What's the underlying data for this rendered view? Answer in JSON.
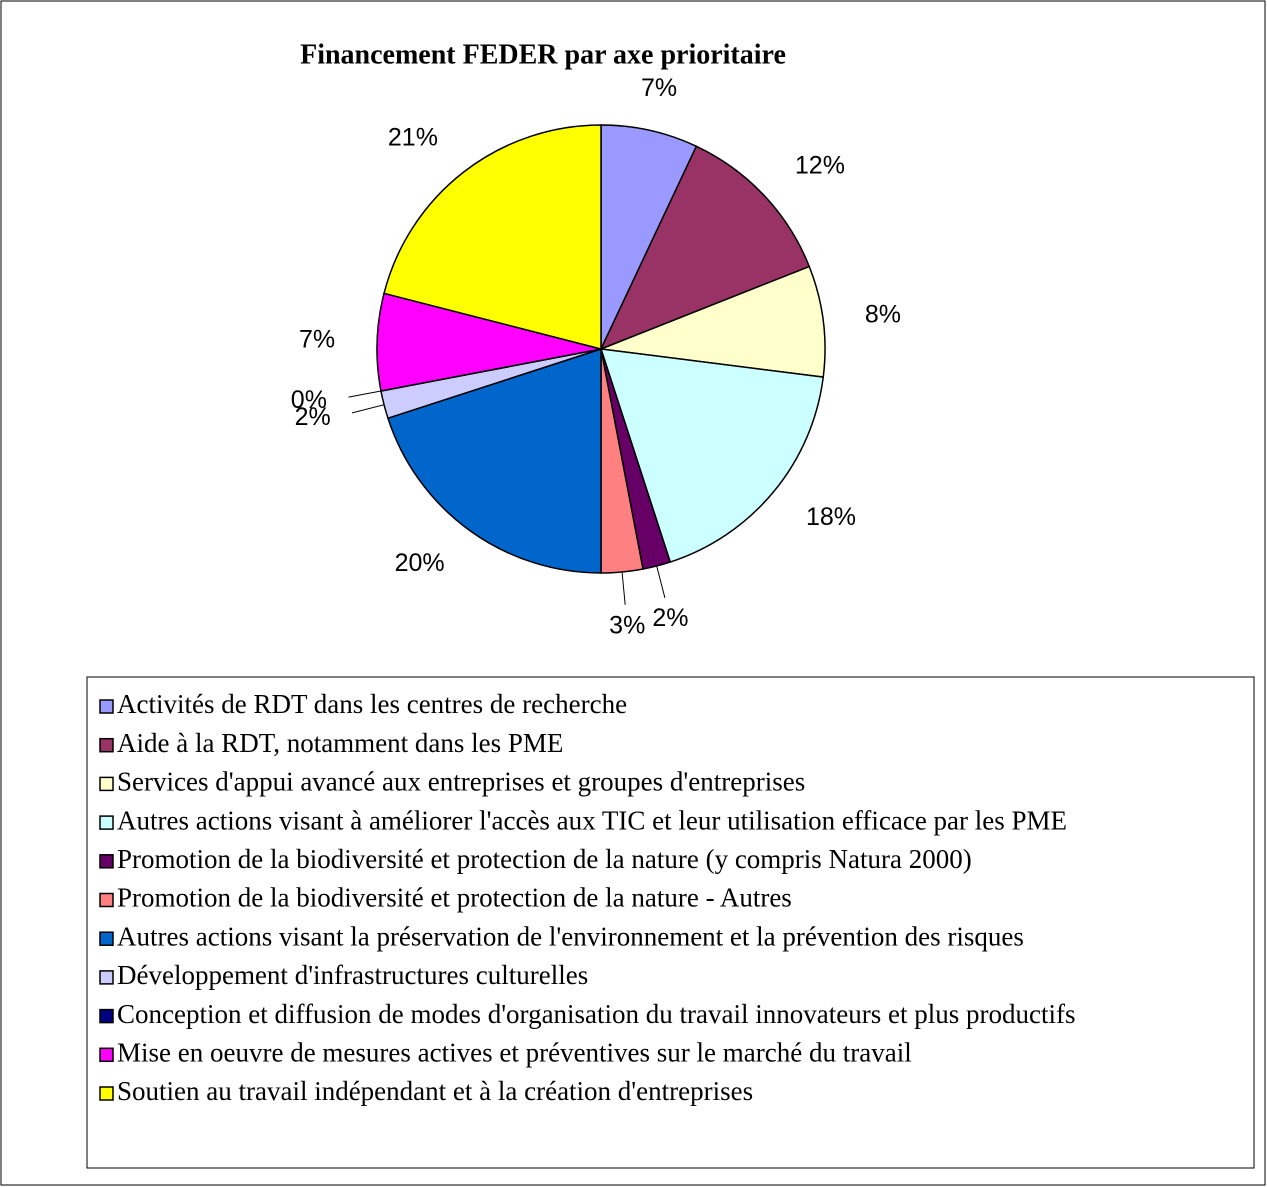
{
  "chart_data": {
    "type": "pie",
    "title": "Financement FEDER par axe prioritaire",
    "categories": [
      "Activités de RDT dans les centres de recherche",
      "Aide à la RDT, notamment dans les PME",
      "Services d'appui avancé aux entreprises et groupes d'entreprises",
      "Autres actions visant à améliorer l'accès aux TIC et leur utilisation efficace par les PME",
      "Promotion de la biodiversité et protection de la nature (y compris Natura 2000)",
      "Promotion de la biodiversité et protection de la nature - Autres",
      "Autres actions visant la préservation de l'environnement et la prévention des risques",
      "Développement d'infrastructures culturelles",
      "Conception et diffusion de modes d'organisation du travail innovateurs et plus productifs",
      "Mise en oeuvre de mesures actives et préventives sur le marché du travail",
      "Soutien au travail indépendant et à la création d'entreprises"
    ],
    "values": [
      7,
      12,
      8,
      18,
      2,
      3,
      20,
      2,
      0,
      7,
      21
    ],
    "value_labels": [
      "7%",
      "12%",
      "8%",
      "18%",
      "2%",
      "3%",
      "20%",
      "2%",
      "0%",
      "7%",
      "21%"
    ],
    "colors": [
      "#9999ff",
      "#993366",
      "#ffffcc",
      "#ccffff",
      "#660066",
      "#ff8080",
      "#0066cc",
      "#ccccff",
      "#000080",
      "#ff00ff",
      "#ffff00"
    ]
  }
}
